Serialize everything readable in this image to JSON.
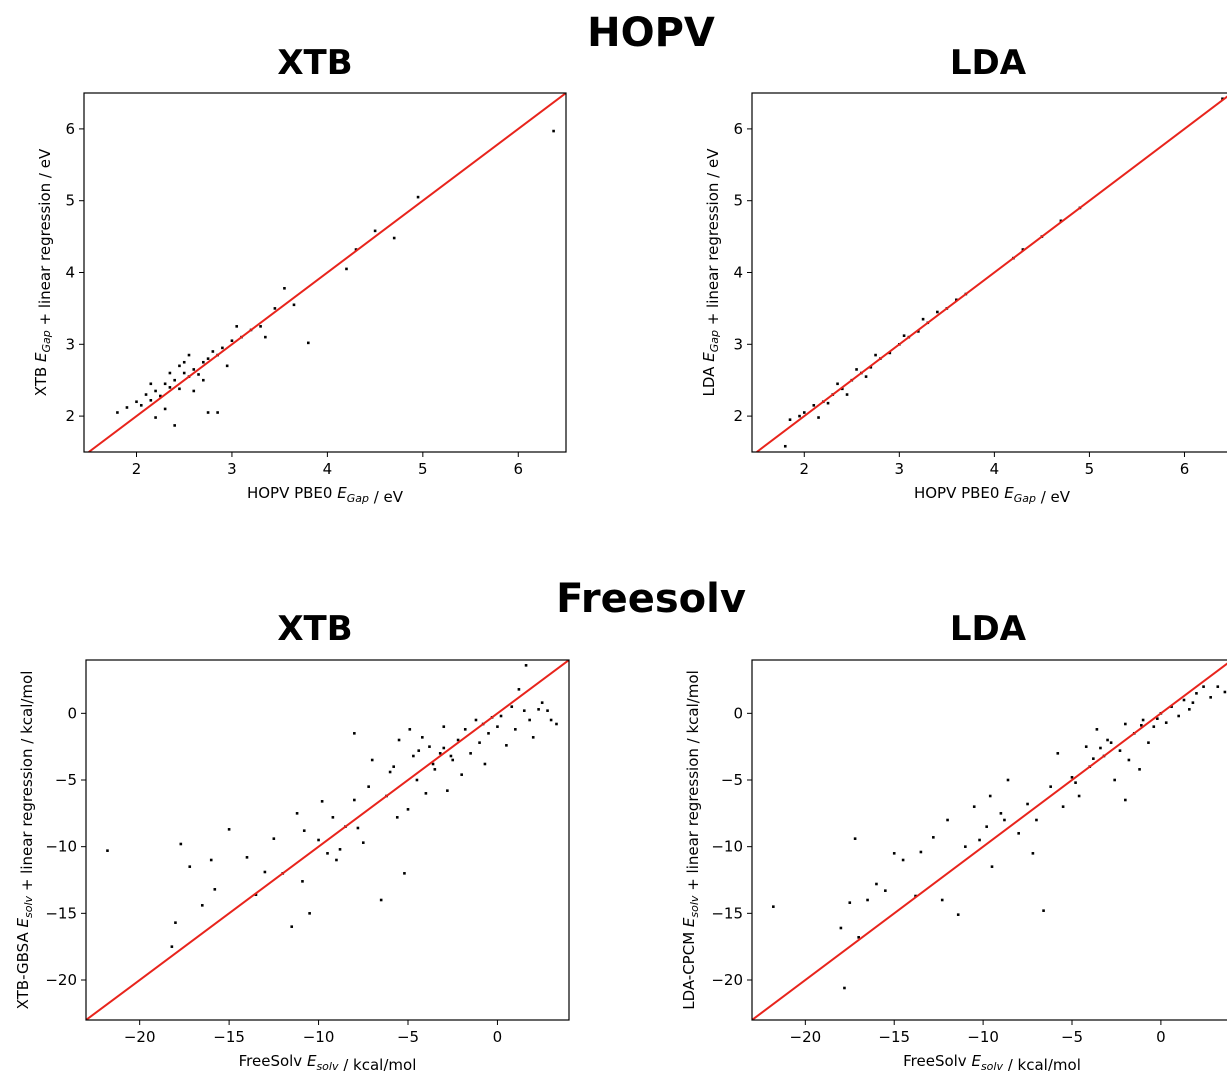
{
  "sections": [
    {
      "title": "HOPV"
    },
    {
      "title": "Freesolv"
    }
  ],
  "chart_data": [
    {
      "type": "scatter",
      "title": "XTB",
      "xlabel": "HOPV PBE0 E_Gap / eV",
      "ylabel": "XTB E_Gap + linear regression / eV",
      "xlim": [
        1.45,
        6.5
      ],
      "ylim": [
        1.5,
        6.5
      ],
      "xticks": [
        2,
        3,
        4,
        5,
        6
      ],
      "yticks": [
        2,
        3,
        4,
        5,
        6
      ],
      "reference_line": "y = x",
      "reference_color": "#e8241c",
      "point_color": "#000000",
      "grid": false,
      "points": [
        [
          1.8,
          2.05
        ],
        [
          1.9,
          2.12
        ],
        [
          2.0,
          2.2
        ],
        [
          2.05,
          2.15
        ],
        [
          2.1,
          2.3
        ],
        [
          2.15,
          2.22
        ],
        [
          2.2,
          2.35
        ],
        [
          2.25,
          2.28
        ],
        [
          2.3,
          2.45
        ],
        [
          2.35,
          2.4
        ],
        [
          2.4,
          2.5
        ],
        [
          2.45,
          2.38
        ],
        [
          2.5,
          2.6
        ],
        [
          2.55,
          2.55
        ],
        [
          2.6,
          2.65
        ],
        [
          2.65,
          2.58
        ],
        [
          2.7,
          2.75
        ],
        [
          2.75,
          2.8
        ],
        [
          2.8,
          2.9
        ],
        [
          2.85,
          2.85
        ],
        [
          2.9,
          2.95
        ],
        [
          3.0,
          3.05
        ],
        [
          3.1,
          3.1
        ],
        [
          3.2,
          3.2
        ],
        [
          3.3,
          3.25
        ],
        [
          3.45,
          3.5
        ],
        [
          3.55,
          3.78
        ],
        [
          3.65,
          3.55
        ],
        [
          3.8,
          3.02
        ],
        [
          4.2,
          4.05
        ],
        [
          4.3,
          4.32
        ],
        [
          4.5,
          4.58
        ],
        [
          4.7,
          4.48
        ],
        [
          4.95,
          5.05
        ],
        [
          6.37,
          5.97
        ],
        [
          2.4,
          1.87
        ],
        [
          2.75,
          2.05
        ],
        [
          2.85,
          2.05
        ],
        [
          2.2,
          1.98
        ],
        [
          2.3,
          2.1
        ],
        [
          2.5,
          2.75
        ],
        [
          2.6,
          2.35
        ],
        [
          2.35,
          2.6
        ],
        [
          2.7,
          2.5
        ],
        [
          2.55,
          2.85
        ],
        [
          3.05,
          3.25
        ],
        [
          2.95,
          2.7
        ],
        [
          2.15,
          2.45
        ],
        [
          2.45,
          2.7
        ],
        [
          3.35,
          3.1
        ]
      ]
    },
    {
      "type": "scatter",
      "title": "LDA",
      "xlabel": "HOPV PBE0 E_Gap / eV",
      "ylabel": "LDA E_Gap + linear regression / eV",
      "xlim": [
        1.45,
        6.5
      ],
      "ylim": [
        1.5,
        6.5
      ],
      "xticks": [
        2,
        3,
        4,
        5,
        6
      ],
      "yticks": [
        2,
        3,
        4,
        5,
        6
      ],
      "reference_line": "y = x",
      "reference_color": "#e8241c",
      "point_color": "#000000",
      "grid": false,
      "points": [
        [
          1.8,
          1.58
        ],
        [
          1.85,
          1.95
        ],
        [
          1.95,
          2.0
        ],
        [
          2.0,
          2.05
        ],
        [
          2.1,
          2.15
        ],
        [
          2.2,
          2.2
        ],
        [
          2.3,
          2.3
        ],
        [
          2.4,
          2.38
        ],
        [
          2.5,
          2.5
        ],
        [
          2.6,
          2.6
        ],
        [
          2.7,
          2.68
        ],
        [
          2.8,
          2.8
        ],
        [
          2.9,
          2.88
        ],
        [
          3.0,
          3.0
        ],
        [
          3.1,
          3.1
        ],
        [
          3.2,
          3.18
        ],
        [
          3.3,
          3.3
        ],
        [
          3.4,
          3.45
        ],
        [
          3.5,
          3.5
        ],
        [
          3.6,
          3.62
        ],
        [
          3.7,
          3.7
        ],
        [
          4.2,
          4.2
        ],
        [
          4.3,
          4.32
        ],
        [
          4.5,
          4.5
        ],
        [
          4.7,
          4.72
        ],
        [
          4.9,
          4.9
        ],
        [
          6.4,
          6.42
        ],
        [
          2.15,
          1.98
        ],
        [
          2.45,
          2.3
        ],
        [
          2.65,
          2.55
        ],
        [
          2.35,
          2.45
        ],
        [
          2.55,
          2.65
        ],
        [
          2.75,
          2.85
        ],
        [
          3.05,
          3.12
        ],
        [
          3.25,
          3.35
        ],
        [
          2.25,
          2.18
        ]
      ]
    },
    {
      "type": "scatter",
      "title": "XTB",
      "xlabel": "FreeSolv E_solv / kcal/mol",
      "ylabel": "XTB-GBSA E_solv + linear regression / kcal/mol",
      "xlim": [
        -23.0,
        4.0
      ],
      "ylim": [
        -23.0,
        4.0
      ],
      "xticks": [
        -20,
        -15,
        -10,
        -5,
        0
      ],
      "yticks": [
        -20,
        -15,
        -10,
        -5,
        0
      ],
      "reference_line": "y = x",
      "reference_color": "#e8241c",
      "point_color": "#000000",
      "grid": false,
      "points": [
        [
          -21.8,
          -10.3
        ],
        [
          -18.2,
          -17.5
        ],
        [
          -18.0,
          -15.7
        ],
        [
          -17.7,
          -9.8
        ],
        [
          -17.2,
          -11.5
        ],
        [
          -16.5,
          -14.4
        ],
        [
          -16.0,
          -11.0
        ],
        [
          -15.8,
          -13.2
        ],
        [
          -15.0,
          -8.7
        ],
        [
          -14.0,
          -10.8
        ],
        [
          -13.5,
          -13.6
        ],
        [
          -13.0,
          -11.9
        ],
        [
          -12.5,
          -9.4
        ],
        [
          -11.5,
          -16.0
        ],
        [
          -11.2,
          -7.5
        ],
        [
          -10.9,
          -12.6
        ],
        [
          -10.5,
          -15.0
        ],
        [
          -10.0,
          -9.5
        ],
        [
          -9.5,
          -10.5
        ],
        [
          -9.2,
          -7.8
        ],
        [
          -9.0,
          -11.0
        ],
        [
          -8.5,
          -8.5
        ],
        [
          -8.0,
          -6.5
        ],
        [
          -8.0,
          -1.5
        ],
        [
          -7.5,
          -9.7
        ],
        [
          -7.2,
          -5.5
        ],
        [
          -7.0,
          -3.5
        ],
        [
          -6.5,
          -14.0
        ],
        [
          -6.2,
          -6.2
        ],
        [
          -5.8,
          -4.0
        ],
        [
          -5.5,
          -2.0
        ],
        [
          -5.2,
          -12.0
        ],
        [
          -5.0,
          -7.2
        ],
        [
          -4.7,
          -3.2
        ],
        [
          -4.5,
          -5.0
        ],
        [
          -4.2,
          -1.8
        ],
        [
          -4.0,
          -6.0
        ],
        [
          -3.8,
          -2.5
        ],
        [
          -3.5,
          -4.2
        ],
        [
          -3.2,
          -3.0
        ],
        [
          -3.0,
          -1.0
        ],
        [
          -2.8,
          -5.8
        ],
        [
          -2.5,
          -3.5
        ],
        [
          -2.2,
          -2.0
        ],
        [
          -2.0,
          -4.6
        ],
        [
          -1.8,
          -1.2
        ],
        [
          -1.5,
          -3.0
        ],
        [
          -1.2,
          -0.5
        ],
        [
          -1.0,
          -2.2
        ],
        [
          -0.8,
          -0.8
        ],
        [
          -0.5,
          -1.5
        ],
        [
          -0.3,
          -0.3
        ],
        [
          0.0,
          -1.0
        ],
        [
          0.2,
          -0.2
        ],
        [
          0.5,
          -2.4
        ],
        [
          0.8,
          0.5
        ],
        [
          1.0,
          -1.2
        ],
        [
          1.2,
          1.8
        ],
        [
          1.5,
          0.2
        ],
        [
          1.8,
          -0.5
        ],
        [
          2.0,
          -1.8
        ],
        [
          2.3,
          0.3
        ],
        [
          2.5,
          0.8
        ],
        [
          2.8,
          0.2
        ],
        [
          3.0,
          -0.5
        ],
        [
          3.3,
          -0.8
        ],
        [
          1.6,
          3.6
        ],
        [
          -3.6,
          -3.8
        ],
        [
          -4.4,
          -2.8
        ],
        [
          -3.0,
          -2.6
        ],
        [
          -2.6,
          -3.2
        ],
        [
          -6.0,
          -4.4
        ],
        [
          -10.8,
          -8.8
        ],
        [
          -9.8,
          -6.6
        ],
        [
          -12.0,
          -12.0
        ],
        [
          -8.8,
          -10.2
        ],
        [
          -7.8,
          -8.6
        ],
        [
          -5.6,
          -7.8
        ],
        [
          -4.9,
          -1.2
        ],
        [
          -0.7,
          -3.8
        ]
      ]
    },
    {
      "type": "scatter",
      "title": "LDA",
      "xlabel": "FreeSolv E_solv / kcal/mol",
      "ylabel": "LDA-CPCM E_solv + linear regression / kcal/mol",
      "xlim": [
        -23.0,
        4.0
      ],
      "ylim": [
        -23.0,
        4.0
      ],
      "xticks": [
        -20,
        -15,
        -10,
        -5,
        0
      ],
      "yticks": [
        -20,
        -15,
        -10,
        -5,
        0
      ],
      "reference_line": "y = x",
      "reference_color": "#e8241c",
      "point_color": "#000000",
      "grid": false,
      "points": [
        [
          -21.8,
          -14.5
        ],
        [
          -18.0,
          -16.1
        ],
        [
          -17.8,
          -20.6
        ],
        [
          -17.5,
          -14.2
        ],
        [
          -17.2,
          -9.4
        ],
        [
          -17.0,
          -16.8
        ],
        [
          -16.5,
          -14.0
        ],
        [
          -16.0,
          -12.8
        ],
        [
          -15.5,
          -13.3
        ],
        [
          -15.0,
          -10.5
        ],
        [
          -14.5,
          -11.0
        ],
        [
          -13.8,
          -13.7
        ],
        [
          -13.5,
          -10.4
        ],
        [
          -12.8,
          -9.3
        ],
        [
          -12.3,
          -14.0
        ],
        [
          -12.0,
          -8.0
        ],
        [
          -11.4,
          -15.1
        ],
        [
          -11.0,
          -10.0
        ],
        [
          -10.5,
          -7.0
        ],
        [
          -10.2,
          -9.5
        ],
        [
          -9.8,
          -8.5
        ],
        [
          -9.5,
          -11.5
        ],
        [
          -9.0,
          -7.5
        ],
        [
          -8.6,
          -5.0
        ],
        [
          -8.0,
          -9.0
        ],
        [
          -7.5,
          -6.8
        ],
        [
          -7.0,
          -8.0
        ],
        [
          -6.6,
          -14.8
        ],
        [
          -6.2,
          -5.5
        ],
        [
          -5.8,
          -3.0
        ],
        [
          -5.5,
          -7.0
        ],
        [
          -5.0,
          -4.8
        ],
        [
          -4.6,
          -6.2
        ],
        [
          -4.2,
          -2.5
        ],
        [
          -4.0,
          -4.0
        ],
        [
          -3.6,
          -1.2
        ],
        [
          -3.2,
          -3.2
        ],
        [
          -3.0,
          -2.0
        ],
        [
          -2.6,
          -5.0
        ],
        [
          -2.3,
          -2.8
        ],
        [
          -2.0,
          -0.8
        ],
        [
          -1.8,
          -3.5
        ],
        [
          -1.5,
          -1.5
        ],
        [
          -1.2,
          -4.2
        ],
        [
          -1.0,
          -0.5
        ],
        [
          -0.7,
          -2.2
        ],
        [
          -0.4,
          -1.0
        ],
        [
          0.0,
          0.0
        ],
        [
          0.3,
          -0.7
        ],
        [
          0.6,
          0.5
        ],
        [
          1.0,
          -0.2
        ],
        [
          1.3,
          1.0
        ],
        [
          1.6,
          0.3
        ],
        [
          2.0,
          1.5
        ],
        [
          2.4,
          2.0
        ],
        [
          2.8,
          1.2
        ],
        [
          3.2,
          2.0
        ],
        [
          3.6,
          1.6
        ],
        [
          3.8,
          2.2
        ],
        [
          -3.8,
          -3.4
        ],
        [
          -3.4,
          -2.6
        ],
        [
          -2.8,
          -2.2
        ],
        [
          -4.8,
          -5.2
        ],
        [
          -1.1,
          -0.9
        ],
        [
          -0.2,
          -0.4
        ],
        [
          -8.8,
          -8.0
        ],
        [
          -7.2,
          -10.5
        ],
        [
          -9.6,
          -6.2
        ],
        [
          -2.0,
          -6.5
        ],
        [
          1.8,
          0.8
        ]
      ]
    }
  ]
}
